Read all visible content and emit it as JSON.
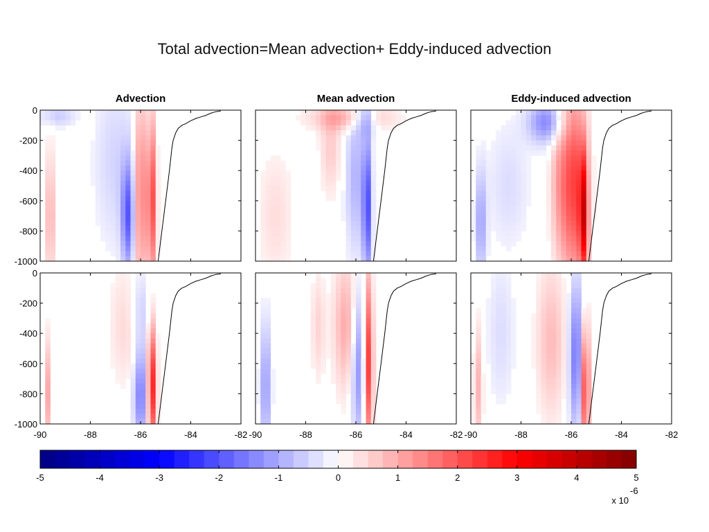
{
  "slide": {
    "title": "Total advection=Mean advection+ Eddy-induced advection"
  },
  "chart_data": {
    "type": "heatmap",
    "layout": "2 rows x 3 columns of depth-longitude sections",
    "panel_titles": [
      "Advection",
      "Mean advection",
      "Eddy-induced advection"
    ],
    "xlim": [
      -90,
      -82
    ],
    "ylim": [
      -1000,
      0
    ],
    "x_ticks": [
      "-90",
      "-88",
      "-86",
      "-84",
      "-82"
    ],
    "y_ticks": [
      "0",
      "-200",
      "-400",
      "-600",
      "-800",
      "-1000"
    ],
    "topography_line": {
      "x": [
        -85.3,
        -85.15,
        -85.0,
        -84.85,
        -84.75,
        -84.7,
        -84.6,
        -84.5,
        -84.35,
        -84.2,
        -84.0,
        -83.8,
        -83.6,
        -83.4,
        -83.2,
        -83.0,
        -82.8
      ],
      "y": [
        -1000,
        -800,
        -600,
        -400,
        -250,
        -200,
        -150,
        -120,
        -100,
        -90,
        -70,
        -55,
        -45,
        -35,
        -20,
        -10,
        -5
      ]
    },
    "colorbar": {
      "range": [
        -5,
        5
      ],
      "ticks": [
        "-5",
        "-4",
        "-3",
        "-2",
        "-1",
        "0",
        "1",
        "2",
        "3",
        "4",
        "5"
      ],
      "multiplier_label": "x 10",
      "multiplier_exponent": "-6",
      "colormap": "blue-white-red",
      "levels": 40
    },
    "panels": [
      {
        "row": 0,
        "title": "Advection",
        "features": [
          {
            "x": -86.0,
            "y": -550,
            "sx": 0.18,
            "sy": 450,
            "v": 1.6
          },
          {
            "x": -85.55,
            "y": -600,
            "sx": 0.12,
            "sy": 380,
            "v": 2.2
          },
          {
            "x": -86.5,
            "y": -700,
            "sx": 0.18,
            "sy": 250,
            "v": -1.8
          },
          {
            "x": -87.0,
            "y": -350,
            "sx": 0.6,
            "sy": 400,
            "v": -0.5
          },
          {
            "x": -89.6,
            "y": -700,
            "sx": 0.12,
            "sy": 300,
            "v": 1.0
          },
          {
            "x": -89.3,
            "y": -40,
            "sx": 0.5,
            "sy": 50,
            "v": -0.6
          }
        ]
      },
      {
        "row": 0,
        "title": "Mean advection",
        "features": [
          {
            "x": -86.2,
            "y": -50,
            "sx": 1.1,
            "sy": 60,
            "v": 1.0
          },
          {
            "x": -85.55,
            "y": -650,
            "sx": 0.12,
            "sy": 330,
            "v": -2.0
          },
          {
            "x": -86.0,
            "y": -450,
            "sx": 0.3,
            "sy": 350,
            "v": -0.9
          },
          {
            "x": -87.0,
            "y": -250,
            "sx": 0.3,
            "sy": 220,
            "v": 0.6
          },
          {
            "x": -89.2,
            "y": -700,
            "sx": 0.5,
            "sy": 300,
            "v": 0.4
          },
          {
            "x": -85.6,
            "y": -60,
            "sx": 0.3,
            "sy": 70,
            "v": -1.2
          }
        ]
      },
      {
        "row": 0,
        "title": "Eddy-induced advection",
        "features": [
          {
            "x": -85.9,
            "y": -500,
            "sx": 0.35,
            "sy": 450,
            "v": 2.2
          },
          {
            "x": -85.5,
            "y": -700,
            "sx": 0.12,
            "sy": 300,
            "v": 2.8
          },
          {
            "x": -87.0,
            "y": -80,
            "sx": 0.5,
            "sy": 100,
            "v": -1.4
          },
          {
            "x": -86.5,
            "y": -500,
            "sx": 0.25,
            "sy": 350,
            "v": 0.8
          },
          {
            "x": -89.6,
            "y": -750,
            "sx": 0.15,
            "sy": 250,
            "v": -1.1
          },
          {
            "x": -88.5,
            "y": -500,
            "sx": 0.6,
            "sy": 300,
            "v": -0.4
          }
        ]
      },
      {
        "row": 1,
        "title": "",
        "features": [
          {
            "x": -85.55,
            "y": -750,
            "sx": 0.12,
            "sy": 280,
            "v": 2.8
          },
          {
            "x": -86.0,
            "y": -800,
            "sx": 0.2,
            "sy": 220,
            "v": -1.6
          },
          {
            "x": -86.5,
            "y": -350,
            "sx": 0.5,
            "sy": 280,
            "v": 0.5
          },
          {
            "x": -89.7,
            "y": -800,
            "sx": 0.1,
            "sy": 250,
            "v": 1.0
          },
          {
            "x": -86.0,
            "y": -250,
            "sx": 0.3,
            "sy": 200,
            "v": -0.7
          }
        ]
      },
      {
        "row": 1,
        "title": "Mean advection",
        "features": [
          {
            "x": -85.5,
            "y": -600,
            "sx": 0.12,
            "sy": 400,
            "v": 2.4
          },
          {
            "x": -85.9,
            "y": -600,
            "sx": 0.2,
            "sy": 350,
            "v": -1.4
          },
          {
            "x": -86.4,
            "y": -350,
            "sx": 0.35,
            "sy": 300,
            "v": 1.0
          },
          {
            "x": -89.6,
            "y": -750,
            "sx": 0.15,
            "sy": 300,
            "v": -1.2
          },
          {
            "x": -87.5,
            "y": -350,
            "sx": 0.2,
            "sy": 250,
            "v": 0.5
          }
        ]
      },
      {
        "row": 1,
        "title": "Eddy-induced advection",
        "features": [
          {
            "x": -85.45,
            "y": -750,
            "sx": 0.12,
            "sy": 300,
            "v": 2.5
          },
          {
            "x": -85.8,
            "y": -550,
            "sx": 0.2,
            "sy": 350,
            "v": -1.7
          },
          {
            "x": -86.8,
            "y": -450,
            "sx": 0.4,
            "sy": 350,
            "v": 0.8
          },
          {
            "x": -89.7,
            "y": -750,
            "sx": 0.12,
            "sy": 280,
            "v": 0.9
          },
          {
            "x": -88.8,
            "y": -400,
            "sx": 0.4,
            "sy": 350,
            "v": -0.4
          }
        ]
      }
    ]
  }
}
